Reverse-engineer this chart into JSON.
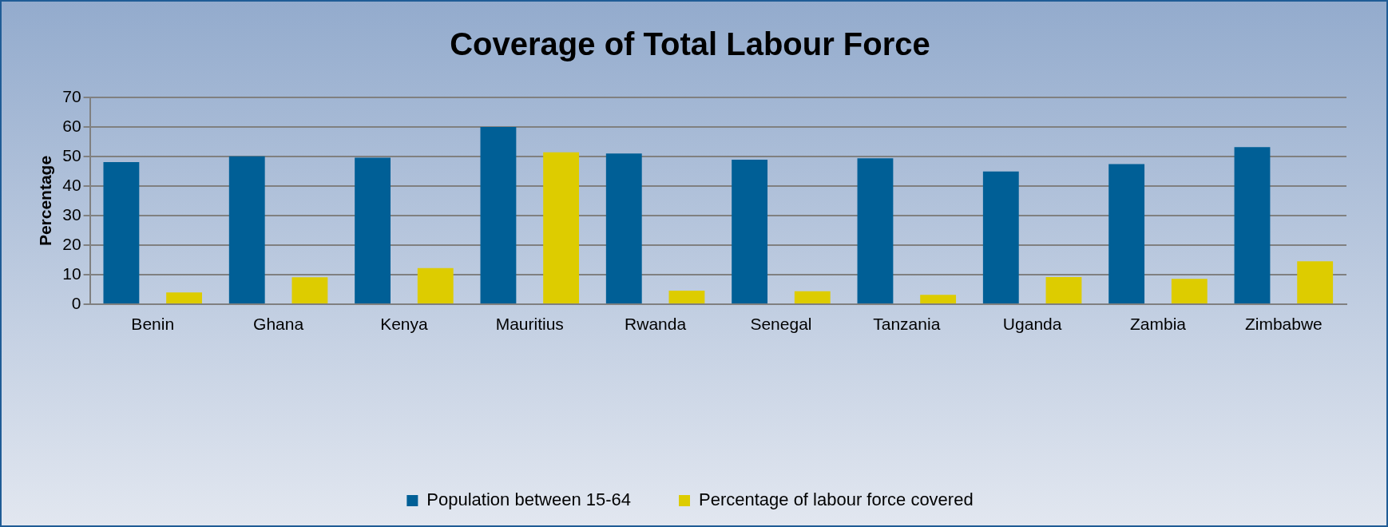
{
  "chart_data": {
    "type": "bar",
    "title": "Coverage of Total Labour Force",
    "ylabel": "Percentage",
    "categories": [
      "Benin",
      "Ghana",
      "Kenya",
      "Mauritius",
      "Rwanda",
      "Senegal",
      "Tanzania",
      "Uganda",
      "Zambia",
      "Zimbabwe"
    ],
    "series": [
      {
        "name": "Population between 15-64",
        "color": "#005f96",
        "values": [
          48.1,
          50.1,
          49.6,
          60,
          51,
          48.9,
          49.4,
          44.9,
          47.4,
          53.2
        ]
      },
      {
        "name": "Percentage of labour force covered",
        "color": "#ddcc00",
        "values": [
          4,
          9.1,
          12.2,
          51.4,
          4.6,
          4.4,
          3.2,
          9.2,
          8.6,
          14.5
        ]
      }
    ],
    "ylim": [
      0,
      70
    ],
    "yticks": [
      0,
      10,
      20,
      30,
      40,
      50,
      60,
      70
    ],
    "grid": "y",
    "legend": "bottom"
  }
}
